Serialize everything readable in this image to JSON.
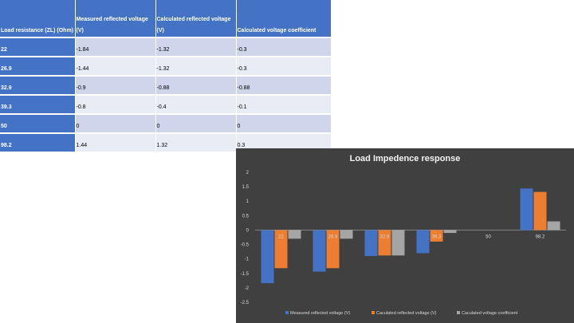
{
  "table": {
    "headers": [
      "Load resistance (ZL) (Ohm)",
      "Measured reflected voltage (V)",
      "Calculated reflected voltage (V)",
      "Calculated voltage coefficient"
    ],
    "rows": [
      [
        "22",
        "-1.84",
        "-1.32",
        "-0.3"
      ],
      [
        "26.9",
        "-1.44",
        "-1.32",
        "-0.3"
      ],
      [
        "32.9",
        "-0.9",
        "-0.88",
        "-0.88"
      ],
      [
        "39.3",
        "-0.8",
        "-0.4",
        "-0.1"
      ],
      [
        "50",
        "0",
        "0",
        "0"
      ],
      [
        "98.2",
        "1.44",
        "1.32",
        "0.3"
      ]
    ]
  },
  "colors": {
    "header_bg": "#4472c4",
    "row_odd": "#cfd5ea",
    "row_even": "#e9ebf5",
    "chart_bg": "#404040"
  },
  "chart_data": {
    "type": "bar",
    "title": "Load Impedence response",
    "categories": [
      "22",
      "26.9",
      "32.9",
      "39.3",
      "50",
      "98.2"
    ],
    "series": [
      {
        "name": "Measured reflected voltage (V)",
        "color": "#4472c4",
        "values": [
          -1.84,
          -1.44,
          -0.9,
          -0.8,
          0,
          1.44
        ]
      },
      {
        "name": "Caculated reflected voltage (V)",
        "color": "#ed7d31",
        "values": [
          -1.32,
          -1.32,
          -0.88,
          -0.4,
          0,
          1.32
        ]
      },
      {
        "name": "Caculated voltage coefficient",
        "color": "#a5a5a5",
        "values": [
          -0.3,
          -0.3,
          -0.88,
          -0.1,
          0,
          0.3
        ]
      }
    ],
    "yticks": [
      "2",
      "1.5",
      "1",
      "0.5",
      "0",
      "-0.5",
      "-1",
      "-1.5",
      "-2",
      "-2.5"
    ],
    "ylim": [
      -2.5,
      2
    ],
    "ystep": 0.5,
    "legend_position": "bottom",
    "grid": false
  }
}
